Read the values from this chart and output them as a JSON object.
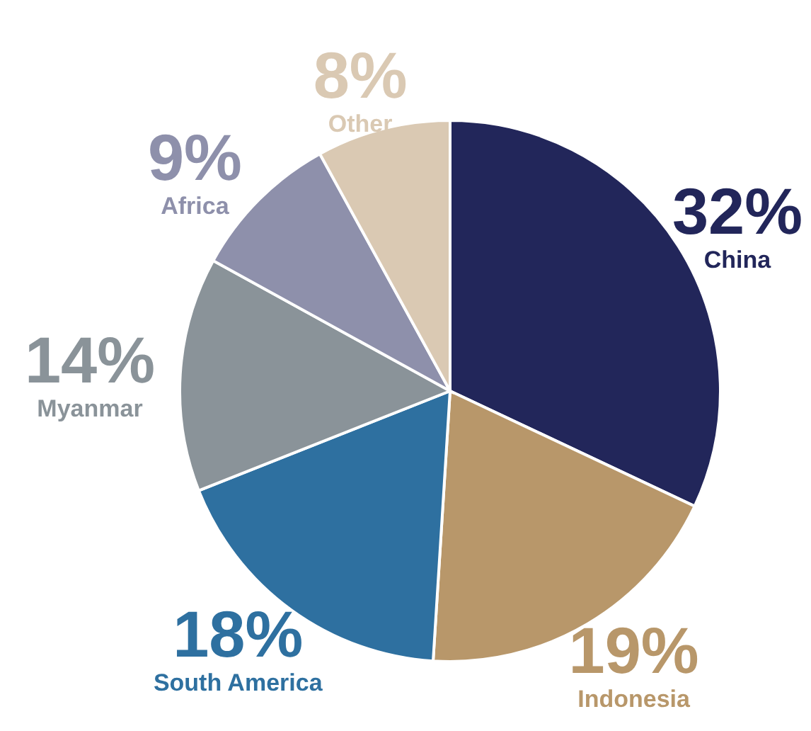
{
  "chart_data": {
    "type": "pie",
    "categories": [
      "China",
      "Indonesia",
      "South America",
      "Myanmar",
      "Africa",
      "Other"
    ],
    "values": [
      32,
      19,
      18,
      14,
      9,
      8
    ],
    "value_labels": [
      "32%",
      "19%",
      "18%",
      "14%",
      "9%",
      "8%"
    ],
    "colors": [
      "#22265a",
      "#b8976a",
      "#2e70a0",
      "#8a9399",
      "#8e90ab",
      "#dac9b3"
    ]
  }
}
